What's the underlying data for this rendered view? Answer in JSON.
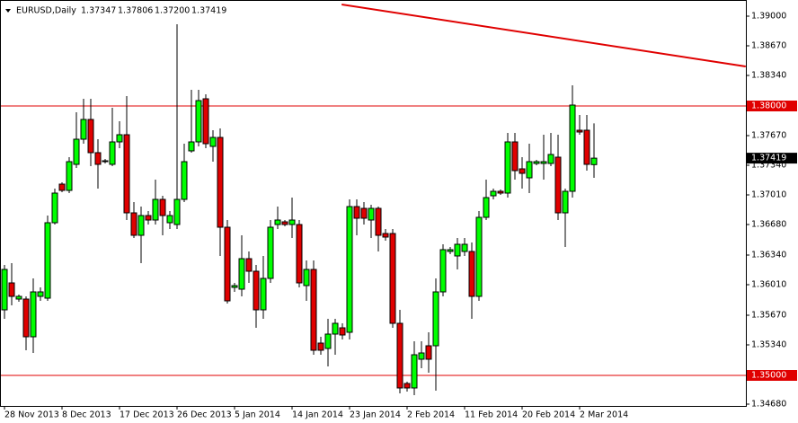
{
  "chart_data": {
    "type": "candlestick",
    "header": {
      "symbol": "EURUSD,Daily",
      "ohlc": [
        {
          "value": 1.37347,
          "label": "1.37347"
        },
        {
          "value": 1.37806,
          "label": "1.37806"
        },
        {
          "value": 1.372,
          "label": "1.37200"
        },
        {
          "value": 1.37419,
          "label": "1.37419"
        }
      ]
    },
    "up_color": "#00ff00",
    "down_color": "#e00000",
    "open": [
      1.3573,
      1.3603,
      1.3585,
      1.3585,
      1.3543,
      1.3588,
      1.3586,
      1.367,
      1.3713,
      1.3706,
      1.3735,
      1.3763,
      1.3785,
      1.3748,
      1.3739,
      1.3735,
      1.376,
      1.3768,
      1.3681,
      1.3656,
      1.3678,
      1.3673,
      1.3696,
      1.367,
      1.3668,
      1.3696,
      1.375,
      1.376,
      1.3808,
      1.3755,
      1.3765,
      1.3665,
      1.3598,
      1.3596,
      1.363,
      1.3616,
      1.3573,
      1.3608,
      1.3668,
      1.3671,
      1.3668,
      1.3668,
      1.36,
      1.3618,
      1.3536,
      1.353,
      1.3546,
      1.3553,
      1.3548,
      1.3688,
      1.3686,
      1.3673,
      1.3686,
      1.3658,
      1.3658,
      1.3558,
      1.3491,
      1.3486,
      1.3518,
      1.3533,
      1.3533,
      1.3593,
      1.3638,
      1.3633,
      1.3638,
      1.3638,
      1.3588,
      1.3676,
      1.37,
      1.3705,
      1.3703,
      1.376,
      1.373,
      1.372,
      1.3736,
      1.3736,
      1.3736,
      1.3743,
      1.3681,
      1.3705,
      1.3773,
      1.3773,
      1.37347
    ],
    "high": [
      1.3623,
      1.3625,
      1.359,
      1.3588,
      1.3608,
      1.3598,
      1.3678,
      1.3708,
      1.3715,
      1.3743,
      1.3793,
      1.3808,
      1.3808,
      1.3763,
      1.3741,
      1.3798,
      1.3783,
      1.3811,
      1.3693,
      1.3688,
      1.3683,
      1.3718,
      1.37,
      1.3683,
      1.3891,
      1.3758,
      1.3818,
      1.3818,
      1.3813,
      1.3773,
      1.3775,
      1.3673,
      1.3603,
      1.3656,
      1.3638,
      1.3623,
      1.3633,
      1.3673,
      1.3688,
      1.3673,
      1.3698,
      1.3673,
      1.3628,
      1.3628,
      1.3543,
      1.3563,
      1.3563,
      1.3558,
      1.3696,
      1.3696,
      1.3693,
      1.369,
      1.3688,
      1.3663,
      1.3663,
      1.3573,
      1.3493,
      1.3538,
      1.3538,
      1.3548,
      1.3608,
      1.3646,
      1.3643,
      1.3653,
      1.3653,
      1.3648,
      1.3683,
      1.3718,
      1.3708,
      1.3707,
      1.377,
      1.377,
      1.3743,
      1.3758,
      1.374,
      1.3768,
      1.377,
      1.3768,
      1.3708,
      1.3823,
      1.379,
      1.379,
      1.37806
    ],
    "low": [
      1.3563,
      1.3578,
      1.3582,
      1.3528,
      1.3525,
      1.3583,
      1.3583,
      1.3668,
      1.3704,
      1.3703,
      1.3731,
      1.3758,
      1.3733,
      1.3708,
      1.3736,
      1.3733,
      1.3753,
      1.3673,
      1.3653,
      1.3625,
      1.3668,
      1.3668,
      1.3656,
      1.3663,
      1.3663,
      1.3693,
      1.3748,
      1.3755,
      1.3753,
      1.3738,
      1.3633,
      1.358,
      1.3593,
      1.3588,
      1.3603,
      1.3553,
      1.3563,
      1.3603,
      1.3663,
      1.3666,
      1.3653,
      1.3598,
      1.3583,
      1.3523,
      1.3523,
      1.351,
      1.3523,
      1.354,
      1.354,
      1.3656,
      1.3668,
      1.3653,
      1.3638,
      1.365,
      1.3553,
      1.348,
      1.3482,
      1.3478,
      1.3508,
      1.3503,
      1.3483,
      1.3588,
      1.3635,
      1.3618,
      1.3633,
      1.3563,
      1.3583,
      1.3673,
      1.3696,
      1.3701,
      1.3698,
      1.3718,
      1.3708,
      1.3703,
      1.3734,
      1.3718,
      1.3733,
      1.3673,
      1.3643,
      1.3698,
      1.3768,
      1.3728,
      1.372
    ],
    "close": [
      1.3618,
      1.3588,
      1.3588,
      1.3543,
      1.3593,
      1.3593,
      1.367,
      1.3703,
      1.3706,
      1.3738,
      1.3763,
      1.3785,
      1.3748,
      1.3735,
      1.3738,
      1.376,
      1.3768,
      1.3681,
      1.3656,
      1.3678,
      1.3673,
      1.3696,
      1.3678,
      1.3678,
      1.3696,
      1.3738,
      1.376,
      1.3806,
      1.3758,
      1.3765,
      1.3665,
      1.3583,
      1.36,
      1.363,
      1.3616,
      1.3573,
      1.3608,
      1.3665,
      1.3673,
      1.3668,
      1.3673,
      1.3603,
      1.3618,
      1.3528,
      1.3528,
      1.3546,
      1.3558,
      1.3545,
      1.3688,
      1.3675,
      1.3675,
      1.3686,
      1.3656,
      1.3654,
      1.3558,
      1.3486,
      1.3486,
      1.3523,
      1.3525,
      1.3518,
      1.3593,
      1.364,
      1.364,
      1.3646,
      1.3646,
      1.3588,
      1.3676,
      1.3698,
      1.3705,
      1.3703,
      1.376,
      1.3728,
      1.3725,
      1.3738,
      1.3738,
      1.3738,
      1.3746,
      1.3681,
      1.3705,
      1.3801,
      1.3771,
      1.3735,
      1.37419
    ],
    "xlim": [
      -0.625,
      103.125
    ],
    "xticks": [
      {
        "value": 0,
        "label": "28 Nov 2013"
      },
      {
        "value": 8,
        "label": "8 Dec 2013"
      },
      {
        "value": 16,
        "label": "17 Dec 2013"
      },
      {
        "value": 24,
        "label": "26 Dec 2013"
      },
      {
        "value": 32,
        "label": "5 Jan 2014"
      },
      {
        "value": 40,
        "label": "14 Jan 2014"
      },
      {
        "value": 48,
        "label": "23 Jan 2014"
      },
      {
        "value": 56,
        "label": "2 Feb 2014"
      },
      {
        "value": 64,
        "label": "11 Feb 2014"
      },
      {
        "value": 72,
        "label": "20 Feb 2014"
      },
      {
        "value": 80,
        "label": "2 Mar 2014"
      }
    ],
    "ylim": [
      1.3466,
      1.3918
    ],
    "yticks": [
      {
        "value": 1.39,
        "label": "1.39000"
      },
      {
        "value": 1.3867,
        "label": "1.38670"
      },
      {
        "value": 1.3834,
        "label": "1.38340"
      },
      {
        "value": 1.3767,
        "label": "1.37670"
      },
      {
        "value": 1.3734,
        "label": "1.37340"
      },
      {
        "value": 1.3701,
        "label": "1.37010"
      },
      {
        "value": 1.3668,
        "label": "1.36680"
      },
      {
        "value": 1.3634,
        "label": "1.36340"
      },
      {
        "value": 1.3601,
        "label": "1.36010"
      },
      {
        "value": 1.3567,
        "label": "1.35670"
      },
      {
        "value": 1.3534,
        "label": "1.35340"
      },
      {
        "value": 1.3468,
        "label": "1.34680"
      }
    ],
    "hlines": [
      {
        "value": 1.38,
        "label": "1.38000"
      },
      {
        "value": 1.35,
        "label": "1.35000"
      }
    ],
    "hline_color": "#e00000",
    "trendline": {
      "x": [
        46.9,
        103.1
      ],
      "y": [
        1.3913,
        1.3844
      ],
      "color": "#e00000"
    }
  }
}
